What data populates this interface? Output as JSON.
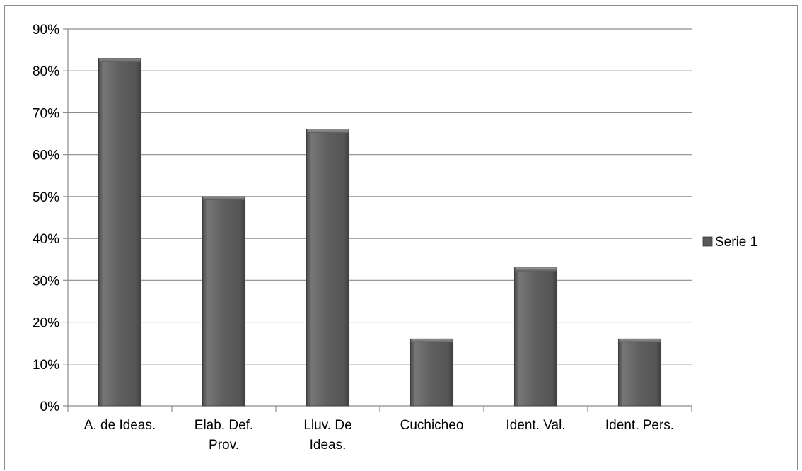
{
  "chart_data": {
    "type": "bar",
    "categories": [
      [
        "A. de Ideas."
      ],
      [
        "Elab. Def.",
        "Prov."
      ],
      [
        "Lluv. De",
        "Ideas."
      ],
      [
        "Cuchicheo"
      ],
      [
        "Ident. Val."
      ],
      [
        "Ident. Pers."
      ]
    ],
    "series": [
      {
        "name": "Serie 1",
        "values": [
          83,
          50,
          66,
          16,
          33,
          16
        ]
      }
    ],
    "y_ticks": [
      "0%",
      "10%",
      "20%",
      "30%",
      "40%",
      "50%",
      "60%",
      "70%",
      "80%",
      "90%"
    ],
    "ylim": [
      0,
      90
    ],
    "grid": true,
    "legend_position": "right",
    "colors": {
      "bar": "#595959",
      "grid": "#8c8c8c"
    }
  }
}
